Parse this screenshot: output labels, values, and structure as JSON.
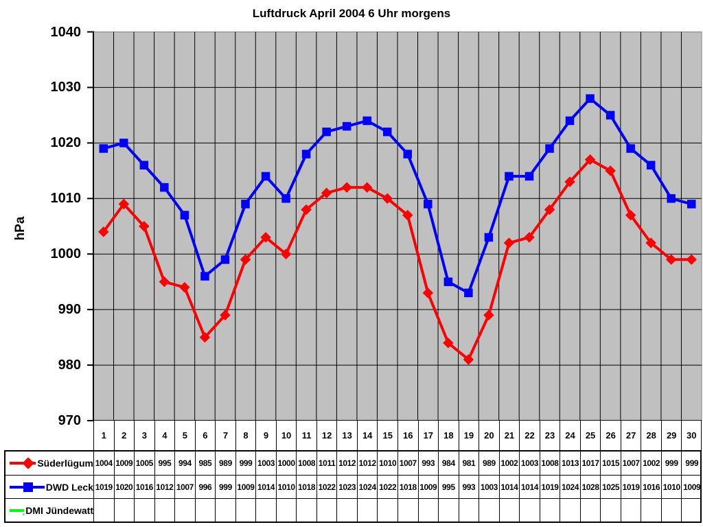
{
  "title": "Luftdruck April 2004 6 Uhr morgens",
  "chart_data": {
    "type": "line",
    "title": "Luftdruck April 2004 6 Uhr morgens",
    "ylabel": "hPa",
    "xlabel": "",
    "ylim": [
      970,
      1040
    ],
    "yticks": [
      970,
      980,
      990,
      1000,
      1010,
      1020,
      1030,
      1040
    ],
    "grid": true,
    "plot_bg_color": "#c0c0c0",
    "gridline_color": "#000000",
    "plot_border_color": "#808080",
    "axis_color": "#000000",
    "legend_position": "bottom-table-left",
    "categories": [
      1,
      2,
      3,
      4,
      5,
      6,
      7,
      8,
      9,
      10,
      11,
      12,
      13,
      14,
      15,
      16,
      17,
      18,
      19,
      20,
      21,
      22,
      23,
      24,
      25,
      26,
      27,
      28,
      29,
      30
    ],
    "series": [
      {
        "name": "Süderlügum",
        "color": "#ff0000",
        "marker": "diamond",
        "values": [
          1004,
          1009,
          1005,
          995,
          994,
          985,
          989,
          999,
          1003,
          1000,
          1008,
          1011,
          1012,
          1012,
          1010,
          1007,
          993,
          984,
          981,
          989,
          1002,
          1003,
          1008,
          1013,
          1017,
          1015,
          1007,
          1002,
          999,
          999
        ]
      },
      {
        "name": "DWD Leck",
        "color": "#0000ff",
        "marker": "square",
        "values": [
          1019,
          1020,
          1016,
          1012,
          1007,
          996,
          999,
          1009,
          1014,
          1010,
          1018,
          1022,
          1023,
          1024,
          1022,
          1018,
          1009,
          995,
          993,
          1003,
          1014,
          1014,
          1019,
          1024,
          1028,
          1025,
          1019,
          1016,
          1010,
          1009
        ]
      },
      {
        "name": "DMI Jündewatt",
        "color": "#00ff00",
        "marker": "triangle",
        "values": []
      }
    ]
  }
}
